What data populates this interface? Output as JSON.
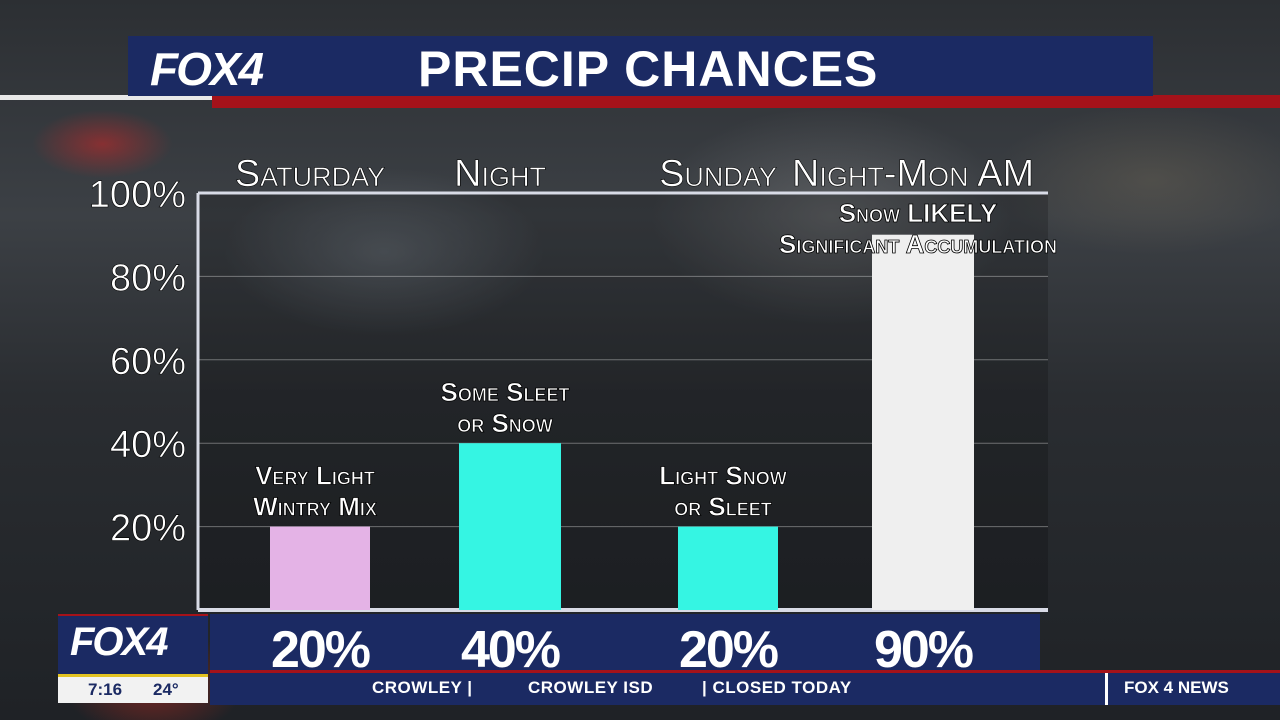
{
  "header": {
    "logo": "FOX4",
    "title": "PRECIP CHANCES"
  },
  "chart_data": {
    "type": "bar",
    "title": "PRECIP CHANCES",
    "categories": [
      "Saturday",
      "Night",
      "Sunday",
      "Night-Mon AM"
    ],
    "values": [
      20,
      40,
      20,
      90
    ],
    "value_labels": [
      "20%",
      "40%",
      "20%",
      "90%"
    ],
    "annotations": [
      [
        "Very Light",
        "Wintry Mix"
      ],
      [
        "Some Sleet",
        "or Snow"
      ],
      [
        "Light Snow",
        "or Sleet"
      ],
      [
        "Snow LIKELY",
        "Significant Accumulation"
      ]
    ],
    "colors": [
      "#e4b3e6",
      "#35f5e3",
      "#35f5e3",
      "#efefef"
    ],
    "yticks": [
      "20%",
      "40%",
      "60%",
      "80%",
      "100%"
    ],
    "ytick_values": [
      20,
      40,
      60,
      80,
      100
    ],
    "ylim": [
      0,
      100
    ],
    "grid": true
  },
  "lower_third": {
    "logo": "FOX4",
    "time": "7:16",
    "temp": "24°",
    "ticker": [
      "CROWLEY |",
      "CROWLEY ISD",
      "| CLOSED TODAY"
    ],
    "brand": "FOX 4 NEWS"
  }
}
